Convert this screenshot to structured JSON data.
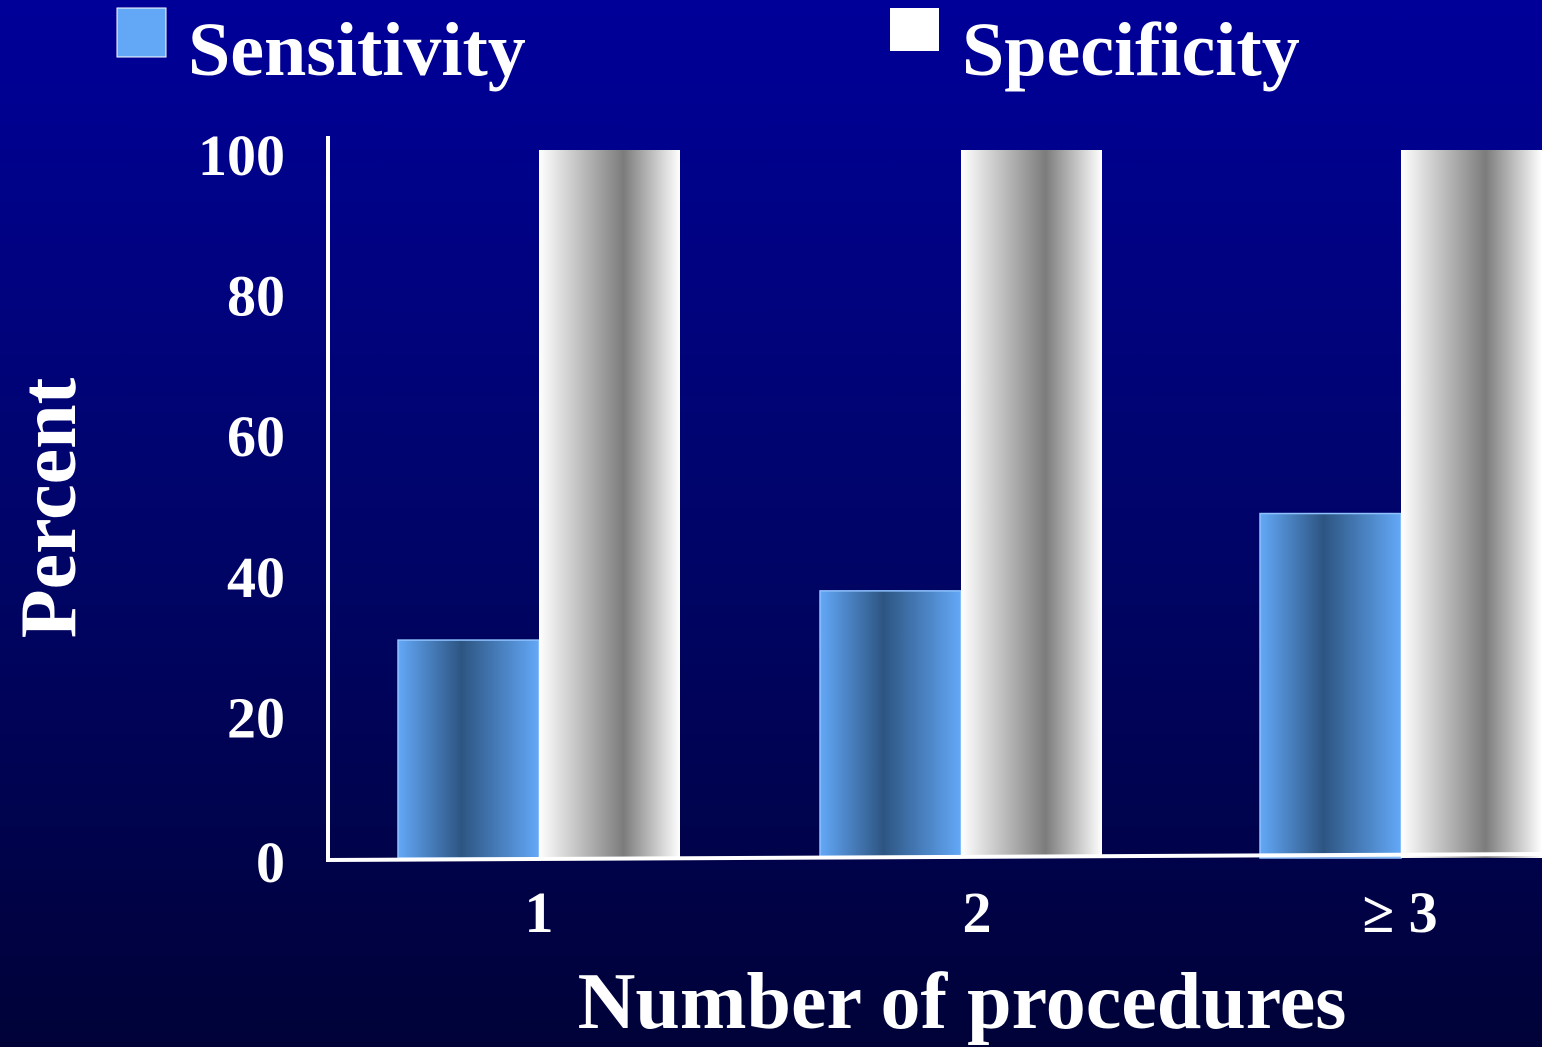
{
  "chart_data": {
    "type": "bar",
    "title": "",
    "xlabel": "Number of procedures",
    "ylabel": "Percent",
    "categories": [
      "1",
      "2",
      "≥ 3"
    ],
    "series": [
      {
        "name": "Sensitivity",
        "values": [
          31,
          38,
          49
        ]
      },
      {
        "name": "Specificity",
        "values": [
          100,
          100,
          100
        ]
      }
    ],
    "ylim": [
      0,
      100
    ],
    "yticks": [
      "0",
      "20",
      "40",
      "60",
      "80",
      "100"
    ],
    "grid": false,
    "legend_position": "top"
  },
  "colors": {
    "background_top": "#000099",
    "background_bottom": "#000238",
    "sensitivity": "#63a8f7",
    "specificity": "#ffffff",
    "axis": "#ffffff"
  }
}
